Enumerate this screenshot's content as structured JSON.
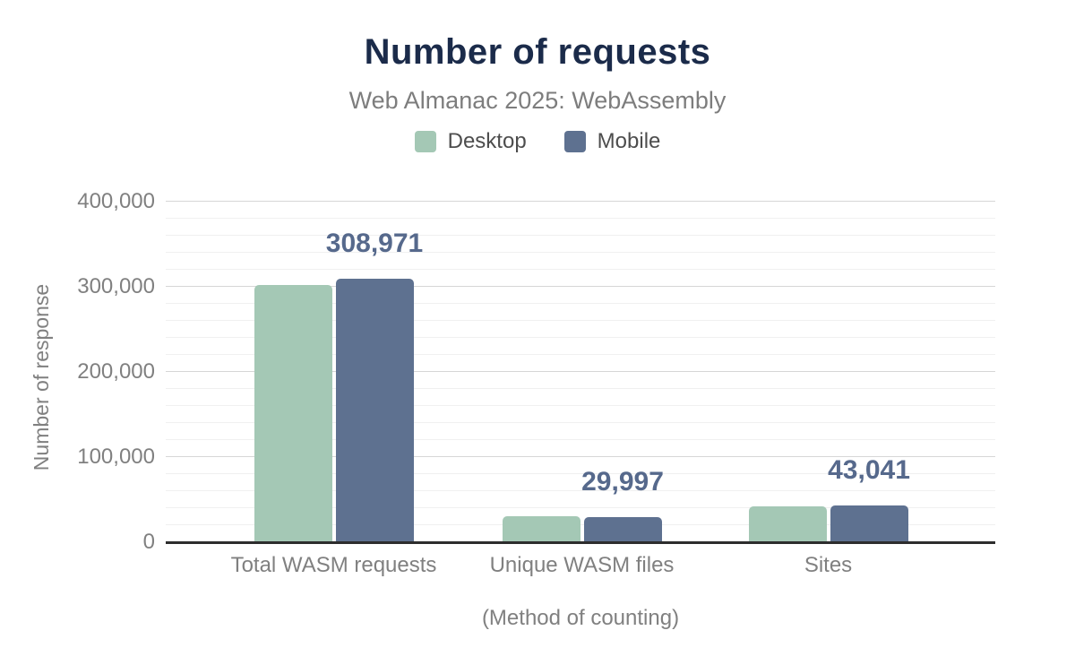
{
  "header": {
    "title": "Number of requests",
    "subtitle": "Web Almanac 2025: WebAssembly"
  },
  "legend": {
    "items": [
      {
        "label": "Desktop",
        "color": "#a4c8b5"
      },
      {
        "label": "Mobile",
        "color": "#5e7190"
      }
    ]
  },
  "axes": {
    "y_title": "Number of response",
    "x_title": "(Method of counting)",
    "y_tick_labels": [
      "0",
      "100,000",
      "200,000",
      "300,000",
      "400,000"
    ]
  },
  "chart_data": {
    "type": "bar",
    "title": "Number of requests",
    "subtitle": "Web Almanac 2025: WebAssembly",
    "categories": [
      "Total WASM requests",
      "Unique WASM files",
      "Sites"
    ],
    "series": [
      {
        "name": "Desktop",
        "color": "#a4c8b5",
        "values": [
          302000,
          30500,
          42600
        ],
        "values_estimated_from_pixels": true
      },
      {
        "name": "Mobile",
        "color": "#5e7190",
        "values": [
          308971,
          29997,
          43041
        ],
        "values_estimated_from_pixels": false
      }
    ],
    "data_labels": {
      "on_series": "Mobile",
      "text": [
        "308,971",
        "29,997",
        "43,041"
      ],
      "color": "#56698c"
    },
    "xlabel": "(Method of counting)",
    "ylabel": "Number of response",
    "ylim": [
      0,
      400000
    ],
    "yticks": [
      0,
      100000,
      200000,
      300000,
      400000
    ],
    "minor_gridline_step": 20000,
    "grid": true,
    "legend_position": "top"
  },
  "colors": {
    "background": "#ffffff",
    "title": "#1b2b4a",
    "subtitle": "#7d7d7d",
    "legend_text": "#4d4d4d",
    "axis_text": "#808080",
    "desktop_bar": "#a4c8b5",
    "mobile_bar": "#5e7190",
    "data_label": "#56698c",
    "major_grid": "#d6d6d6",
    "minor_grid": "#f0f0f0",
    "axis_line": "#2d2d2d"
  }
}
